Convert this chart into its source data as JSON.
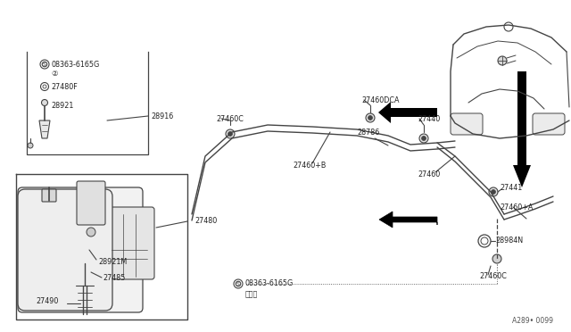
{
  "bg_color": "#ffffff",
  "line_color": "#444444",
  "text_color": "#222222",
  "font_size": 5.8,
  "diagram_ref": "A289• 0099",
  "parts_labels": {
    "08363_top": "08363-6165G",
    "circle2": "②",
    "27480F": "27480F",
    "28921": "28921",
    "28916": "28916",
    "27460C_top": "27460C",
    "27460B": "27460+B",
    "27460DCA": "27460DCA",
    "28786": "28786",
    "27440": "27440",
    "27460": "27460",
    "27441": "27441",
    "27460A": "27460+A",
    "27460C_bot": "27460C",
    "28984N": "28984N",
    "27480": "27480",
    "28921M": "28921M",
    "27485": "27485",
    "27490": "27490",
    "08363_bot": "08363-6165G",
    "bracket1": "（１）"
  }
}
